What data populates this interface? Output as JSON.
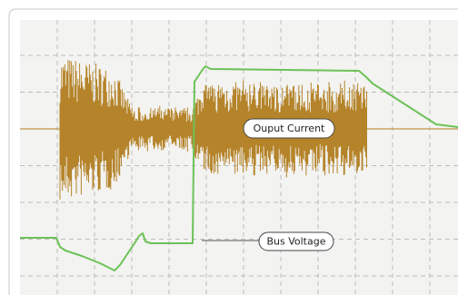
{
  "labels": {
    "output_current": "Ouput Current",
    "bus_voltage": "Bus Voltage"
  }
}
